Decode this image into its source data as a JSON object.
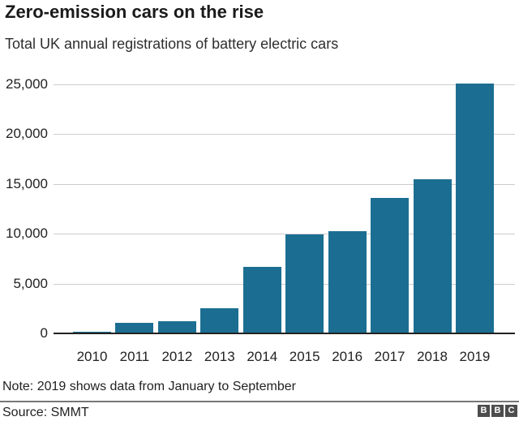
{
  "header": {
    "title": "Zero-emission cars on the rise",
    "subtitle": "Total UK annual registrations of battery electric cars"
  },
  "chart_data": {
    "type": "bar",
    "title": "Zero-emission cars on the rise",
    "subtitle": "Total UK annual registrations of battery electric cars",
    "categories": [
      "2010",
      "2011",
      "2012",
      "2013",
      "2014",
      "2015",
      "2016",
      "2017",
      "2018",
      "2019"
    ],
    "values": [
      140,
      1080,
      1260,
      2510,
      6700,
      9930,
      10260,
      13600,
      15470,
      25100
    ],
    "xlabel": "",
    "ylabel": "",
    "ylim": [
      0,
      25000
    ],
    "yticks": [
      {
        "value": 0,
        "label": "0"
      },
      {
        "value": 5000,
        "label": "5,000"
      },
      {
        "value": 10000,
        "label": "10,000"
      },
      {
        "value": 15000,
        "label": "15,000"
      },
      {
        "value": 20000,
        "label": "20,000"
      },
      {
        "value": 25000,
        "label": "25,000"
      }
    ],
    "grid": "horizontal",
    "legend": "none",
    "bar_color": "#1b6e91"
  },
  "footer": {
    "note": "Note: 2019 shows data from January to September",
    "source": "Source: SMMT",
    "logo_letters": [
      "B",
      "B",
      "C"
    ]
  },
  "colors": {
    "bar": "#1b6e91",
    "grid": "#cccccc",
    "axis": "#222222",
    "divider": "#777777",
    "logo": "#4d4d4d",
    "text": "#222222"
  }
}
